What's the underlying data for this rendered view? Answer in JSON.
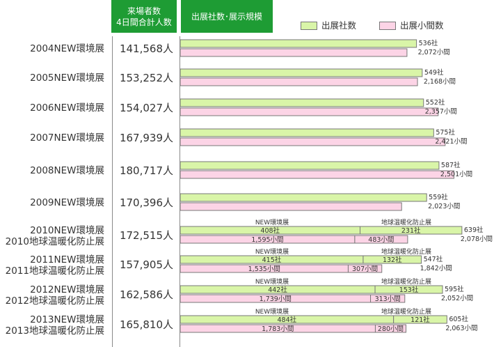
{
  "header": {
    "visitors_line1": "来場者数",
    "visitors_line2": "4日間合計人数",
    "exhibit": "出展社数･展示規模"
  },
  "legend": {
    "companies": "出展社数",
    "booths": "出展小間数"
  },
  "colors": {
    "header_green": "#1e9c34",
    "companies_fill": "#d9f5a8",
    "booths_fill": "#fcd4e6",
    "bar_border": "#777777"
  },
  "chart_data": {
    "type": "bar",
    "orientation": "horizontal",
    "x_max": 2600,
    "rows": [
      {
        "label": [
          "2004NEW環境展"
        ],
        "visitors": "141,568人",
        "companies": 536,
        "companies_label": "536社",
        "booths": 2072,
        "booths_label": "2,072小間"
      },
      {
        "label": [
          "2005NEW環境展"
        ],
        "visitors": "153,252人",
        "companies": 549,
        "companies_label": "549社",
        "booths": 2168,
        "booths_label": "2,168小間"
      },
      {
        "label": [
          "2006NEW環境展"
        ],
        "visitors": "154,027人",
        "companies": 552,
        "companies_label": "552社",
        "booths": 2357,
        "booths_label": "2,357小間"
      },
      {
        "label": [
          "2007NEW環境展"
        ],
        "visitors": "167,939人",
        "companies": 575,
        "companies_label": "575社",
        "booths": 2421,
        "booths_label": "2,421小間"
      },
      {
        "label": [
          "2008NEW環境展"
        ],
        "visitors": "180,717人",
        "companies": 587,
        "companies_label": "587社",
        "booths": 2501,
        "booths_label": "2,501小間"
      },
      {
        "label": [
          "2009NEW環境展"
        ],
        "visitors": "170,396人",
        "companies": 559,
        "companies_label": "559社",
        "booths": 2023,
        "booths_label": "2,023小間"
      },
      {
        "label": [
          "2010NEW環境展",
          "2010地球温暖化防止展"
        ],
        "visitors": "172,515人",
        "companies": 639,
        "companies_label": "639社",
        "booths": 2078,
        "booths_label": "2,078小間",
        "split": {
          "left_name": "NEW環境展",
          "right_name": "地球温暖化防止展",
          "companies": [
            408,
            231
          ],
          "companies_labels": [
            "408社",
            "231社"
          ],
          "booths": [
            1595,
            483
          ],
          "booths_labels": [
            "1,595小間",
            "483小間"
          ]
        }
      },
      {
        "label": [
          "2011NEW環境展",
          "2011地球温暖化防止展"
        ],
        "visitors": "157,905人",
        "companies": 547,
        "companies_label": "547社",
        "booths": 1842,
        "booths_label": "1,842小間",
        "split": {
          "left_name": "NEW環境展",
          "right_name": "地球温暖化防止展",
          "companies": [
            415,
            132
          ],
          "companies_labels": [
            "415社",
            "132社"
          ],
          "booths": [
            1535,
            307
          ],
          "booths_labels": [
            "1,535小間",
            "307小間"
          ]
        }
      },
      {
        "label": [
          "2012NEW環境展",
          "2012地球温暖化防止展"
        ],
        "visitors": "162,586人",
        "companies": 595,
        "companies_label": "595社",
        "booths": 2052,
        "booths_label": "2,052小間",
        "split": {
          "left_name": "NEW環境展",
          "right_name": "地球温暖化防止展",
          "companies": [
            442,
            153
          ],
          "companies_labels": [
            "442社",
            "153社"
          ],
          "booths": [
            1739,
            313
          ],
          "booths_labels": [
            "1,739小間",
            "313小間"
          ]
        }
      },
      {
        "label": [
          "2013NEW環境展",
          "2013地球温暖化防止展"
        ],
        "visitors": "165,810人",
        "companies": 605,
        "companies_label": "605社",
        "booths": 2063,
        "booths_label": "2,063小間",
        "split": {
          "left_name": "NEW環境展",
          "right_name": "地球温暖化防止展",
          "companies": [
            484,
            121
          ],
          "companies_labels": [
            "484社",
            "121社"
          ],
          "booths": [
            1783,
            280
          ],
          "booths_labels": [
            "1,783小間",
            "280小間"
          ]
        }
      }
    ]
  }
}
